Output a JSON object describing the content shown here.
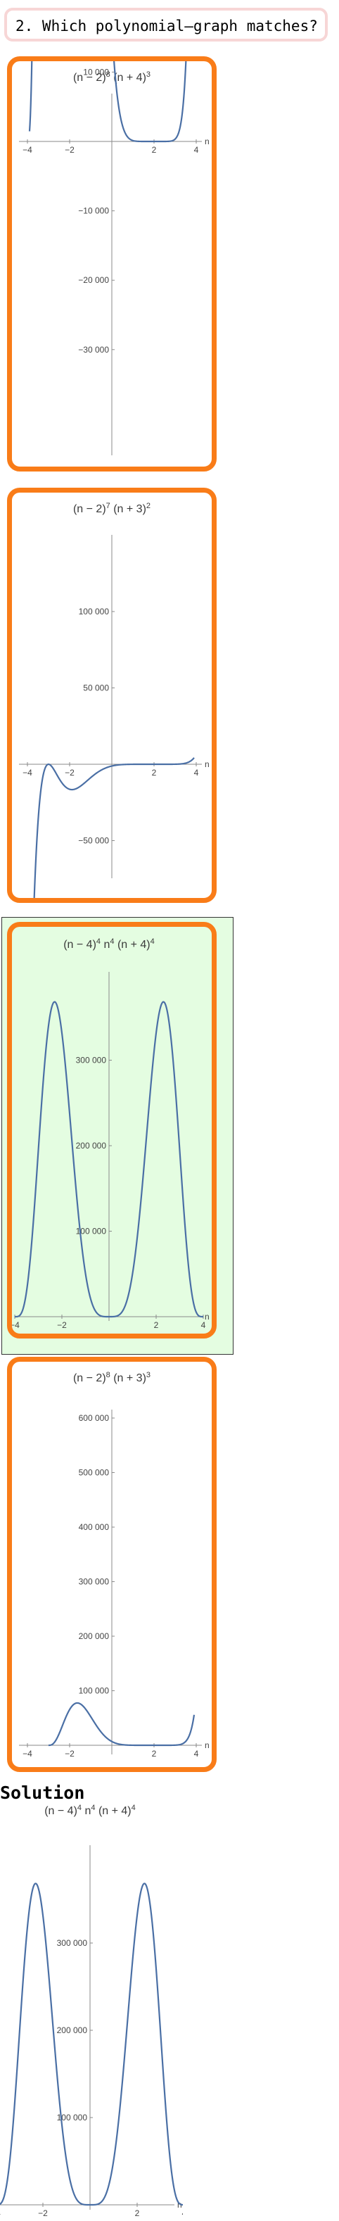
{
  "question": {
    "text": "2. Which polynomial–graph matches?"
  },
  "options": [
    {
      "id": "option-1",
      "parts": [
        [
          "(n − 2)",
          false
        ],
        [
          "8",
          true
        ],
        [
          " (n + 4)",
          false
        ],
        [
          "3",
          true
        ]
      ],
      "selected": false,
      "x_ticks": [
        "−4",
        "−2",
        "2",
        "4"
      ],
      "y_ticks": [
        "10 000",
        "−10 000",
        "−20 000",
        "−30 000"
      ],
      "axis_var": "n",
      "chart_data": {
        "type": "line",
        "title": "(n−2)^8 (n+4)^3",
        "xlim": [
          -4.2,
          4.2
        ],
        "ylim": [
          -39000,
          11000
        ],
        "series": [
          {
            "function": "(n-2)^8*(n+4)^3",
            "domain": [
              -3.9,
              3.9
            ]
          }
        ]
      }
    },
    {
      "id": "option-2",
      "parts": [
        [
          "(n − 2)",
          false
        ],
        [
          "7",
          true
        ],
        [
          " (n + 3)",
          false
        ],
        [
          "2",
          true
        ]
      ],
      "selected": false,
      "x_ticks": [
        "−4",
        "−2",
        "2",
        "4"
      ],
      "y_ticks": [
        "100 000",
        "50 000",
        "−50 000"
      ],
      "axis_var": "n",
      "chart_data": {
        "type": "line",
        "title": "(n−2)^7 (n+3)^2",
        "xlim": [
          -4.2,
          4.2
        ],
        "ylim": [
          -80000,
          140000
        ],
        "series": [
          {
            "function": "(n-2)^7*(n+3)^2",
            "domain": [
              -3.8,
              3.9
            ]
          }
        ]
      }
    },
    {
      "id": "option-3",
      "parts": [
        [
          "(n − 4)",
          false
        ],
        [
          "4",
          true
        ],
        [
          " n",
          false
        ],
        [
          "4",
          true
        ],
        [
          " (n + 4)",
          false
        ],
        [
          "4",
          true
        ]
      ],
      "selected": true,
      "x_ticks": [
        "−4",
        "−2",
        "2",
        "4"
      ],
      "y_ticks": [
        "300 000",
        "200 000",
        "100 000"
      ],
      "axis_var": "n",
      "chart_data": {
        "type": "line",
        "title": "(n−4)^4 n^4 (n+4)^4",
        "xlim": [
          -4.3,
          4.3
        ],
        "ylim": [
          0,
          390000
        ],
        "series": [
          {
            "function": "(n-4)^4*n^4*(n+4)^4",
            "domain": [
              -4,
              4
            ]
          }
        ]
      }
    },
    {
      "id": "option-4",
      "parts": [
        [
          "(n − 2)",
          false
        ],
        [
          "8",
          true
        ],
        [
          " (n + 3)",
          false
        ],
        [
          "3",
          true
        ]
      ],
      "selected": false,
      "x_ticks": [
        "−4",
        "−2",
        "2",
        "4"
      ],
      "y_ticks": [
        "600 000",
        "500 000",
        "400 000",
        "300 000",
        "200 000",
        "100 000"
      ],
      "axis_var": "n",
      "chart_data": {
        "type": "line",
        "title": "(n−2)^8 (n+3)^3",
        "xlim": [
          -4.3,
          4.3
        ],
        "ylim": [
          -5000,
          610000
        ],
        "series": [
          {
            "function": "(n-2)^8*(n+3)^3",
            "domain": [
              -3,
              3.9
            ]
          }
        ]
      }
    }
  ],
  "solution": {
    "heading": "Solution",
    "parts": [
      [
        "(n − 4)",
        false
      ],
      [
        "4",
        true
      ],
      [
        " n",
        false
      ],
      [
        "4",
        true
      ],
      [
        " (n + 4)",
        false
      ],
      [
        "4",
        true
      ]
    ],
    "x_ticks": [
      "−4",
      "−2",
      "2",
      "4"
    ],
    "y_ticks": [
      "300 000",
      "200 000",
      "100 000"
    ],
    "axis_var": "n",
    "chart_data": {
      "type": "line",
      "title": "(n−4)^4 n^4 (n+4)^4",
      "xlim": [
        -4.3,
        4.3
      ],
      "ylim": [
        0,
        390000
      ],
      "series": [
        {
          "function": "(n-4)^4*n^4*(n+4)^4",
          "domain": [
            -4,
            4
          ]
        }
      ]
    }
  }
}
